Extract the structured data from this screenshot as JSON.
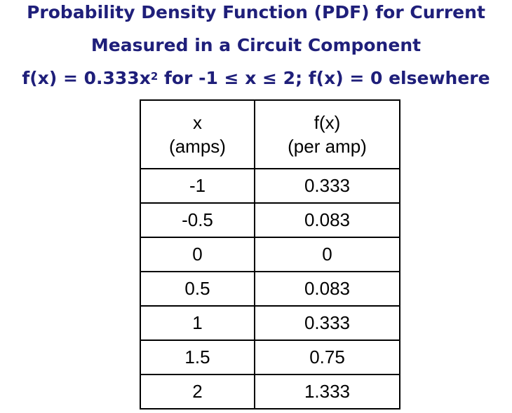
{
  "title": {
    "line1": "Probability Density Function (PDF) for Current",
    "line2": "Measured in a Circuit Component",
    "line3_pre": "f(x) = 0.333x",
    "line3_sup": "2",
    "line3_post": " for -1 ≤ x ≤ 2; f(x) = 0 elsewhere"
  },
  "chart_data": {
    "type": "table",
    "title": "Probability Density Function (PDF) for Current Measured in a Circuit Component",
    "columns": [
      {
        "name": "x",
        "unit": "(amps)"
      },
      {
        "name": "f(x)",
        "unit": "(per amp)"
      }
    ],
    "rows": [
      [
        "-1",
        "0.333"
      ],
      [
        "-0.5",
        "0.083"
      ],
      [
        "0",
        "0"
      ],
      [
        "0.5",
        "0.083"
      ],
      [
        "1",
        "0.333"
      ],
      [
        "1.5",
        "0.75"
      ],
      [
        "2",
        "1.333"
      ]
    ]
  }
}
